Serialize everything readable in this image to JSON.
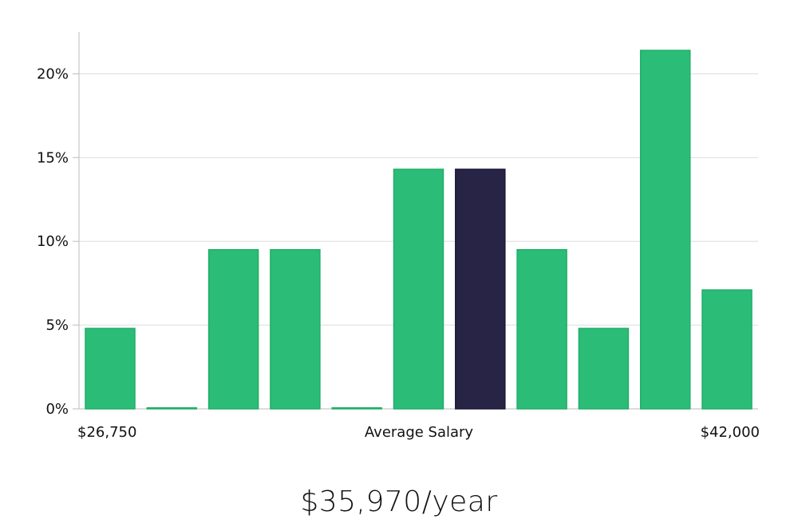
{
  "chart_data": {
    "type": "bar",
    "values": [
      4.8,
      0,
      9.5,
      9.5,
      0,
      14.3,
      14.3,
      9.5,
      4.8,
      21.4,
      7.1
    ],
    "highlight_index": 6,
    "ylim": [
      0,
      22.5
    ],
    "y_ticks": [
      0,
      5,
      10,
      15,
      20
    ],
    "y_tick_labels": [
      "0%",
      "5%",
      "10%",
      "15%",
      "20%"
    ],
    "x_min_label": "$26,750",
    "x_center_label": "Average Salary",
    "x_max_label": "$42,000",
    "grid": true,
    "colors": {
      "bar": "#2bbd77",
      "bar_edge": "#1fae68",
      "highlight": "#272446",
      "highlight_edge": "#1a1838",
      "grid": "#dddddd",
      "axis": "#bbbbbb"
    }
  },
  "summary": "$35,970/year"
}
